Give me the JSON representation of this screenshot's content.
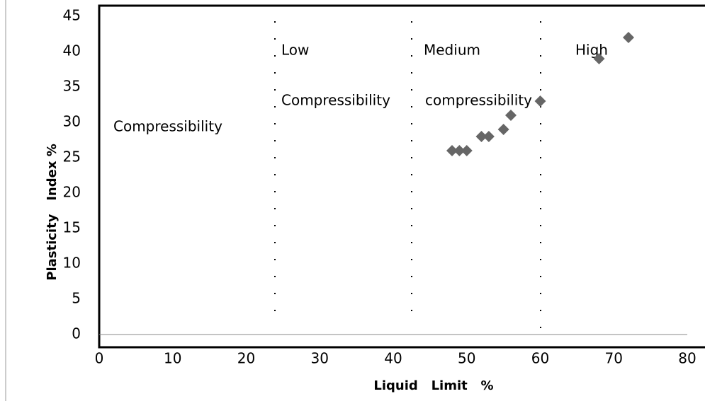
{
  "chart_data": {
    "type": "scatter",
    "x_label": "Liquid   Limit   %",
    "y_label": "Plasticity   Index %",
    "series": [
      {
        "x": [
          48,
          49,
          50,
          52,
          53,
          55,
          56,
          60,
          68,
          72
        ],
        "values": [
          26,
          26,
          26,
          28,
          28,
          29,
          31,
          33,
          39,
          42
        ],
        "color": "#666666"
      }
    ],
    "xlim": [
      0,
      80
    ],
    "xticks": [
      0,
      10,
      20,
      30,
      40,
      50,
      60,
      70,
      80
    ],
    "ylim": [
      0,
      45
    ],
    "yticks": [
      0,
      5,
      10,
      15,
      20,
      25,
      30,
      35,
      40,
      45
    ],
    "annotations": [
      "Compressibility",
      "Low",
      "Compressibility",
      "Medium",
      "compressibility",
      "High"
    ]
  }
}
